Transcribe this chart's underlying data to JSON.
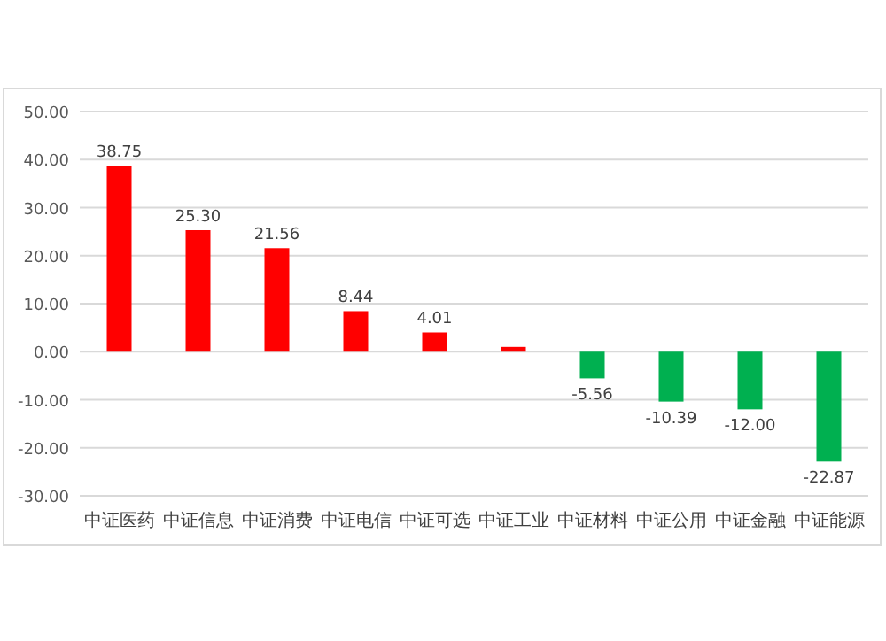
{
  "chart_data": {
    "type": "bar",
    "categories": [
      "中证医药",
      "中证信息",
      "中证消费",
      "中证电信",
      "中证可选",
      "中证工业",
      "中证材料",
      "中证公用",
      "中证金融",
      "中证能源"
    ],
    "values": [
      38.75,
      25.3,
      21.56,
      8.44,
      4.01,
      1.0,
      -5.56,
      -10.39,
      -12.0,
      -22.87
    ],
    "value_labels": [
      "38.75",
      "25.30",
      "21.56",
      "8.44",
      "4.01",
      null,
      "-5.56",
      "-10.39",
      "-12.00",
      "-22.87"
    ],
    "colors": [
      "#ff0000",
      "#ff0000",
      "#ff0000",
      "#ff0000",
      "#ff0000",
      "#ff0000",
      "#00b050",
      "#00b050",
      "#00b050",
      "#00b050"
    ],
    "ylim": [
      -30,
      50
    ],
    "yticks": [
      {
        "value": -30,
        "label": "-30.00"
      },
      {
        "value": -20,
        "label": "-20.00"
      },
      {
        "value": -10,
        "label": "-10.00"
      },
      {
        "value": 0,
        "label": "0.00"
      },
      {
        "value": 10,
        "label": "10.00"
      },
      {
        "value": 20,
        "label": "20.00"
      },
      {
        "value": 30,
        "label": "30.00"
      },
      {
        "value": 40,
        "label": "40.00"
      },
      {
        "value": 50,
        "label": "50.00"
      }
    ],
    "grid": "y"
  }
}
